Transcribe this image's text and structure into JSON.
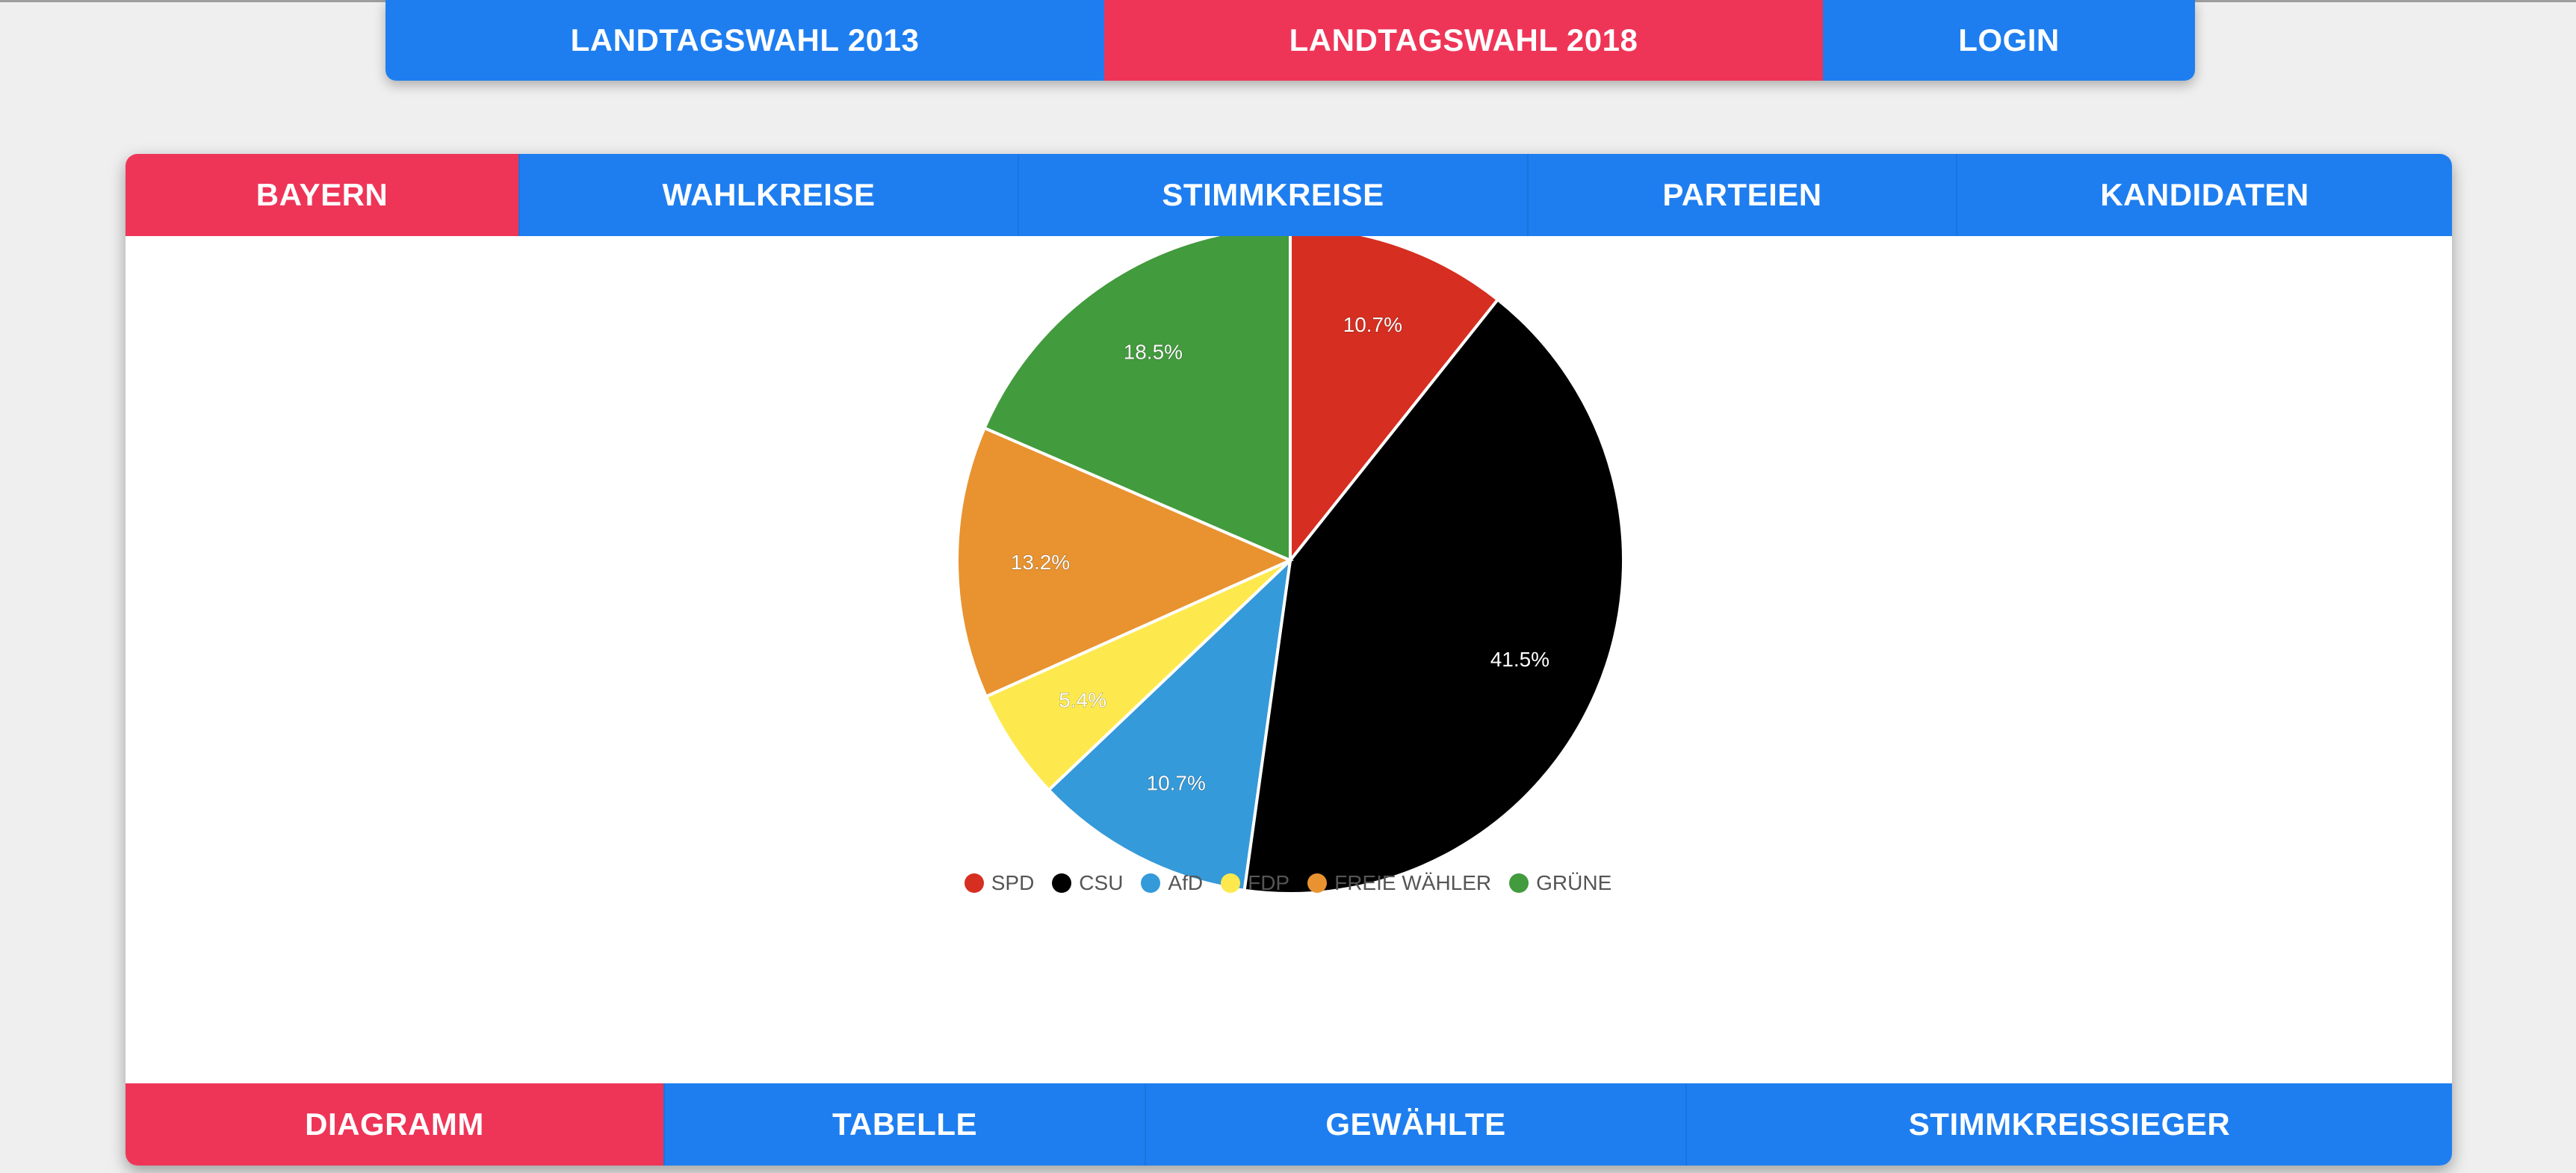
{
  "colors": {
    "blue": "#1e7ef0",
    "red": "#ee3558"
  },
  "topnav": {
    "items": [
      {
        "label": "LANDTAGSWAHL 2013",
        "active": false
      },
      {
        "label": "LANDTAGSWAHL 2018",
        "active": true
      },
      {
        "label": "LOGIN",
        "active": false
      }
    ]
  },
  "region_tabs": {
    "items": [
      {
        "label": "BAYERN",
        "active": true
      },
      {
        "label": "WAHLKREISE",
        "active": false
      },
      {
        "label": "STIMMKREISE",
        "active": false
      },
      {
        "label": "PARTEIEN",
        "active": false
      },
      {
        "label": "KANDIDATEN",
        "active": false
      }
    ]
  },
  "view_tabs": {
    "items": [
      {
        "label": "DIAGRAMM",
        "active": true
      },
      {
        "label": "TABELLE",
        "active": false
      },
      {
        "label": "GEWÄHLTE",
        "active": false
      },
      {
        "label": "STIMMKREISSIEGER",
        "active": false
      }
    ]
  },
  "chart_data": {
    "type": "pie",
    "legend_position": "bottom",
    "slices": [
      {
        "name": "SPD",
        "value": 10.7,
        "label": "10.7%",
        "color": "#d62e20"
      },
      {
        "name": "CSU",
        "value": 41.5,
        "label": "41.5%",
        "color": "#000000"
      },
      {
        "name": "AfD",
        "value": 10.7,
        "label": "10.7%",
        "color": "#359ad9"
      },
      {
        "name": "FDP",
        "value": 5.4,
        "label": "5.4%",
        "color": "#fde94e"
      },
      {
        "name": "FREIE WÄHLER",
        "value": 13.2,
        "label": "13.2%",
        "color": "#e89330"
      },
      {
        "name": "GRÜNE",
        "value": 18.5,
        "label": "18.5%",
        "color": "#429b3c"
      }
    ]
  }
}
